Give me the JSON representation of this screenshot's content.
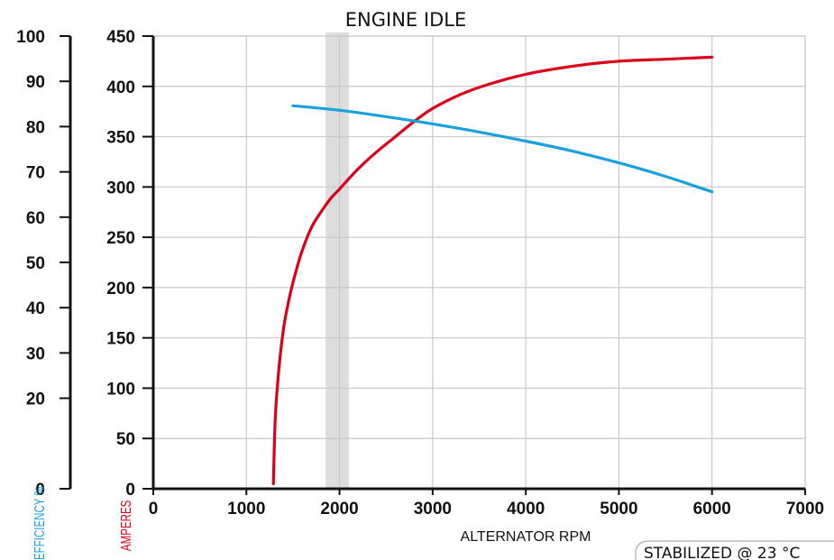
{
  "chart_data": {
    "type": "line",
    "title": "ENGINE IDLE",
    "xlabel": "ALTERNATOR RPM",
    "ylabel_left": "EFFICIENCY %",
    "ylabel_right": "AMPERES",
    "xlim": [
      0,
      7000
    ],
    "ylim_efficiency": [
      0,
      100
    ],
    "ylim_amperes": [
      0,
      450
    ],
    "x_ticks": [
      "0",
      "1000",
      "2000",
      "3000",
      "4000",
      "5000",
      "6000",
      "7000"
    ],
    "efficiency_ticks": [
      "0",
      "20",
      "30",
      "40",
      "50",
      "60",
      "70",
      "80",
      "90",
      "100"
    ],
    "efficiency_tick_values": [
      0,
      20,
      30,
      40,
      50,
      60,
      70,
      80,
      90,
      100
    ],
    "amperes_ticks": [
      "0",
      "50",
      "100",
      "150",
      "200",
      "250",
      "300",
      "350",
      "400",
      "450"
    ],
    "amperes_tick_values": [
      0,
      50,
      100,
      150,
      200,
      250,
      300,
      350,
      400,
      450
    ],
    "grid": true,
    "idle_band_rpm": [
      1850,
      2100
    ],
    "annotation": "STABILIZED @ 23 °C",
    "colors": {
      "amperes": "#d9001b",
      "efficiency": "#1aa0dc",
      "grid": "#c8c8c8",
      "band": "#dddddd"
    },
    "series": [
      {
        "axis": "amperes",
        "x": [
          1290,
          1310,
          1350,
          1400,
          1450,
          1500,
          1550,
          1600,
          1700,
          1800,
          1900,
          2000,
          2200,
          2400,
          2600,
          2800,
          3000,
          3300,
          3600,
          4000,
          4500,
          5000,
          5500,
          6000
        ],
        "values": [
          5,
          70,
          120,
          160,
          185,
          205,
          222,
          237,
          260,
          275,
          288,
          298,
          318,
          335,
          350,
          365,
          378,
          392,
          402,
          412,
          420,
          425,
          427,
          429
        ]
      },
      {
        "axis": "efficiency",
        "x": [
          1500,
          2000,
          2500,
          3000,
          3500,
          4000,
          4500,
          5000,
          5500,
          6000
        ],
        "values": [
          84.6,
          83.6,
          82.2,
          80.6,
          78.8,
          76.8,
          74.6,
          72.0,
          69.0,
          65.6
        ]
      }
    ]
  }
}
